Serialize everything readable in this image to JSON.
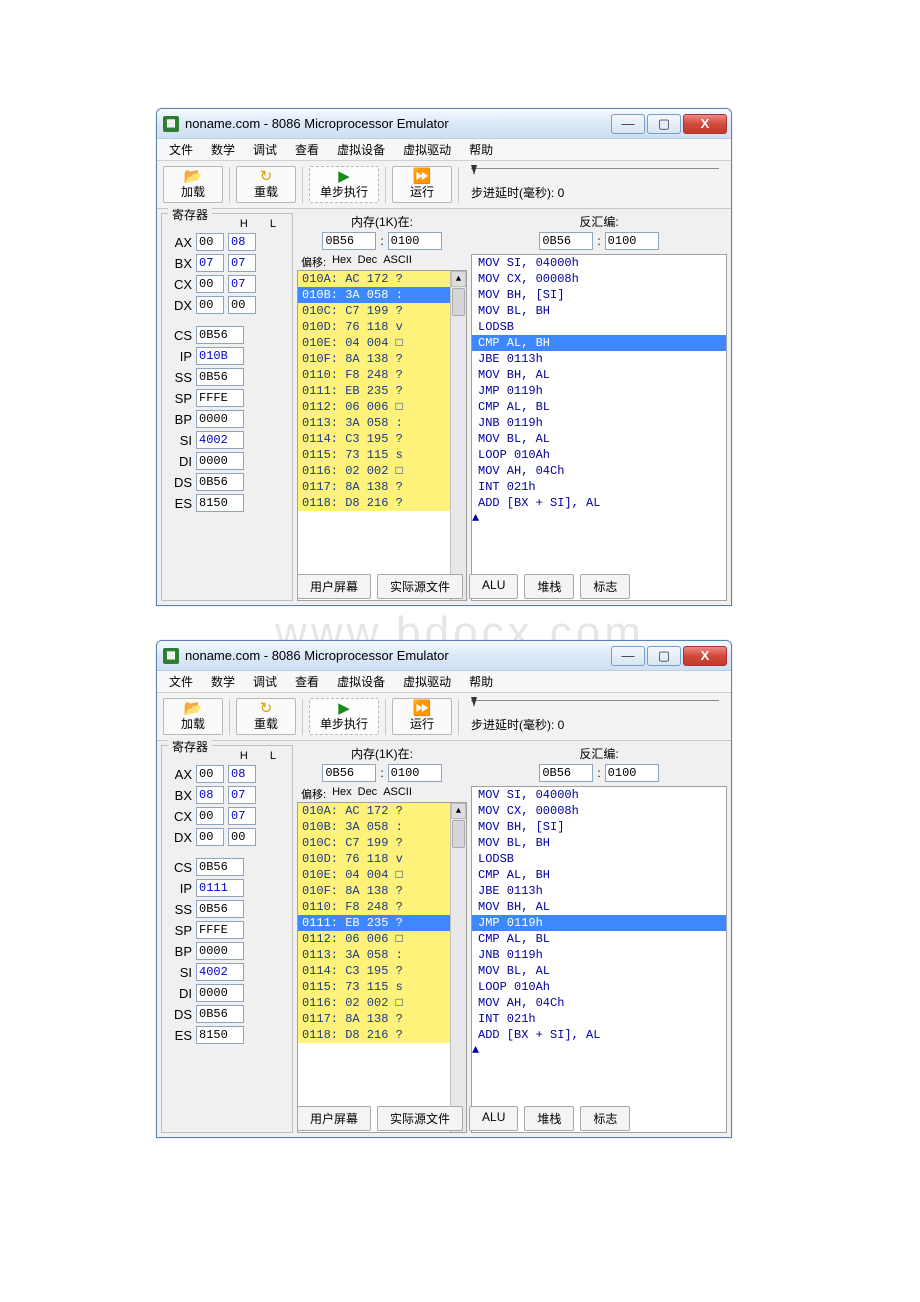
{
  "watermark": "www.bdocx.com",
  "window_title": "noname.com - 8086 Microprocessor Emulator",
  "menus": [
    "文件",
    "数学",
    "调试",
    "查看",
    "虚拟设备",
    "虚拟驱动",
    "帮助"
  ],
  "toolbar": {
    "load": "加载",
    "reload": "重载",
    "step": "单步执行",
    "run": "运行",
    "delay_label": "步进延时(毫秒): 0"
  },
  "colors": {
    "highlight_yellow": "#fff27a",
    "highlight_blue": "#3d87ff",
    "text_blue": "#0000a0",
    "window_border": "#5a7fb5",
    "close_red": "#c43a2a"
  },
  "panels": {
    "reg_label": "寄存器",
    "mem_label": "内存(1K)在:",
    "disasm_label": "反汇编:",
    "offset_hdr": [
      "偏移:",
      "Hex",
      "Dec",
      "ASCII"
    ]
  },
  "addr": {
    "seg": "0B56",
    "off": "0100"
  },
  "mem_lines": [
    {
      "t": "010A: AC 172 ?"
    },
    {
      "t": "010B: 3A 058 :"
    },
    {
      "t": "010C: C7 199 ?"
    },
    {
      "t": "010D: 76 118 v"
    },
    {
      "t": "010E: 04 004 □"
    },
    {
      "t": "010F: 8A 138 ?"
    },
    {
      "t": "0110: F8 248 ?"
    },
    {
      "t": "0111: EB 235 ?"
    },
    {
      "t": "0112: 06 006 □"
    },
    {
      "t": "0113: 3A 058 :"
    },
    {
      "t": "0114: C3 195 ?"
    },
    {
      "t": "0115: 73 115 s"
    },
    {
      "t": "0116: 02 002 □"
    },
    {
      "t": "0117: 8A 138 ?"
    },
    {
      "t": "0118: D8 216 ?"
    }
  ],
  "disasm_lines": [
    "MOV SI, 04000h",
    "MOV CX, 00008h",
    "MOV BH, [SI]",
    "MOV BL, BH",
    "LODSB",
    "CMP AL, BH",
    "JBE 0113h",
    "MOV BH, AL",
    "JMP 0119h",
    "CMP AL, BL",
    "JNB 0119h",
    "MOV BL, AL",
    "LOOP 010Ah",
    "MOV AH, 04Ch",
    "INT 021h",
    "ADD [BX + SI], AL"
  ],
  "bottom_buttons": [
    "用户屏幕",
    "实际源文件",
    "ALU",
    "堆栈",
    "标志"
  ],
  "state_top": {
    "AX": {
      "H": "00",
      "L": "08"
    },
    "BX": {
      "H": "07",
      "L": "07"
    },
    "CX": {
      "H": "00",
      "L": "07"
    },
    "DX": {
      "H": "00",
      "L": "00"
    },
    "CS": "0B56",
    "IP": "010B",
    "SS": "0B56",
    "SP": "FFFE",
    "BP": "0000",
    "SI": "4002",
    "DI": "0000",
    "DS": "0B56",
    "ES": "8150",
    "mem_hl_index": 1,
    "dis_hl_index": 5
  },
  "state_bottom": {
    "AX": {
      "H": "00",
      "L": "08"
    },
    "BX": {
      "H": "08",
      "L": "07"
    },
    "CX": {
      "H": "00",
      "L": "07"
    },
    "DX": {
      "H": "00",
      "L": "00"
    },
    "CS": "0B56",
    "IP": "0111",
    "SS": "0B56",
    "SP": "FFFE",
    "BP": "0000",
    "SI": "4002",
    "DI": "0000",
    "DS": "0B56",
    "ES": "8150",
    "mem_hl_index": 7,
    "dis_hl_index": 8
  }
}
